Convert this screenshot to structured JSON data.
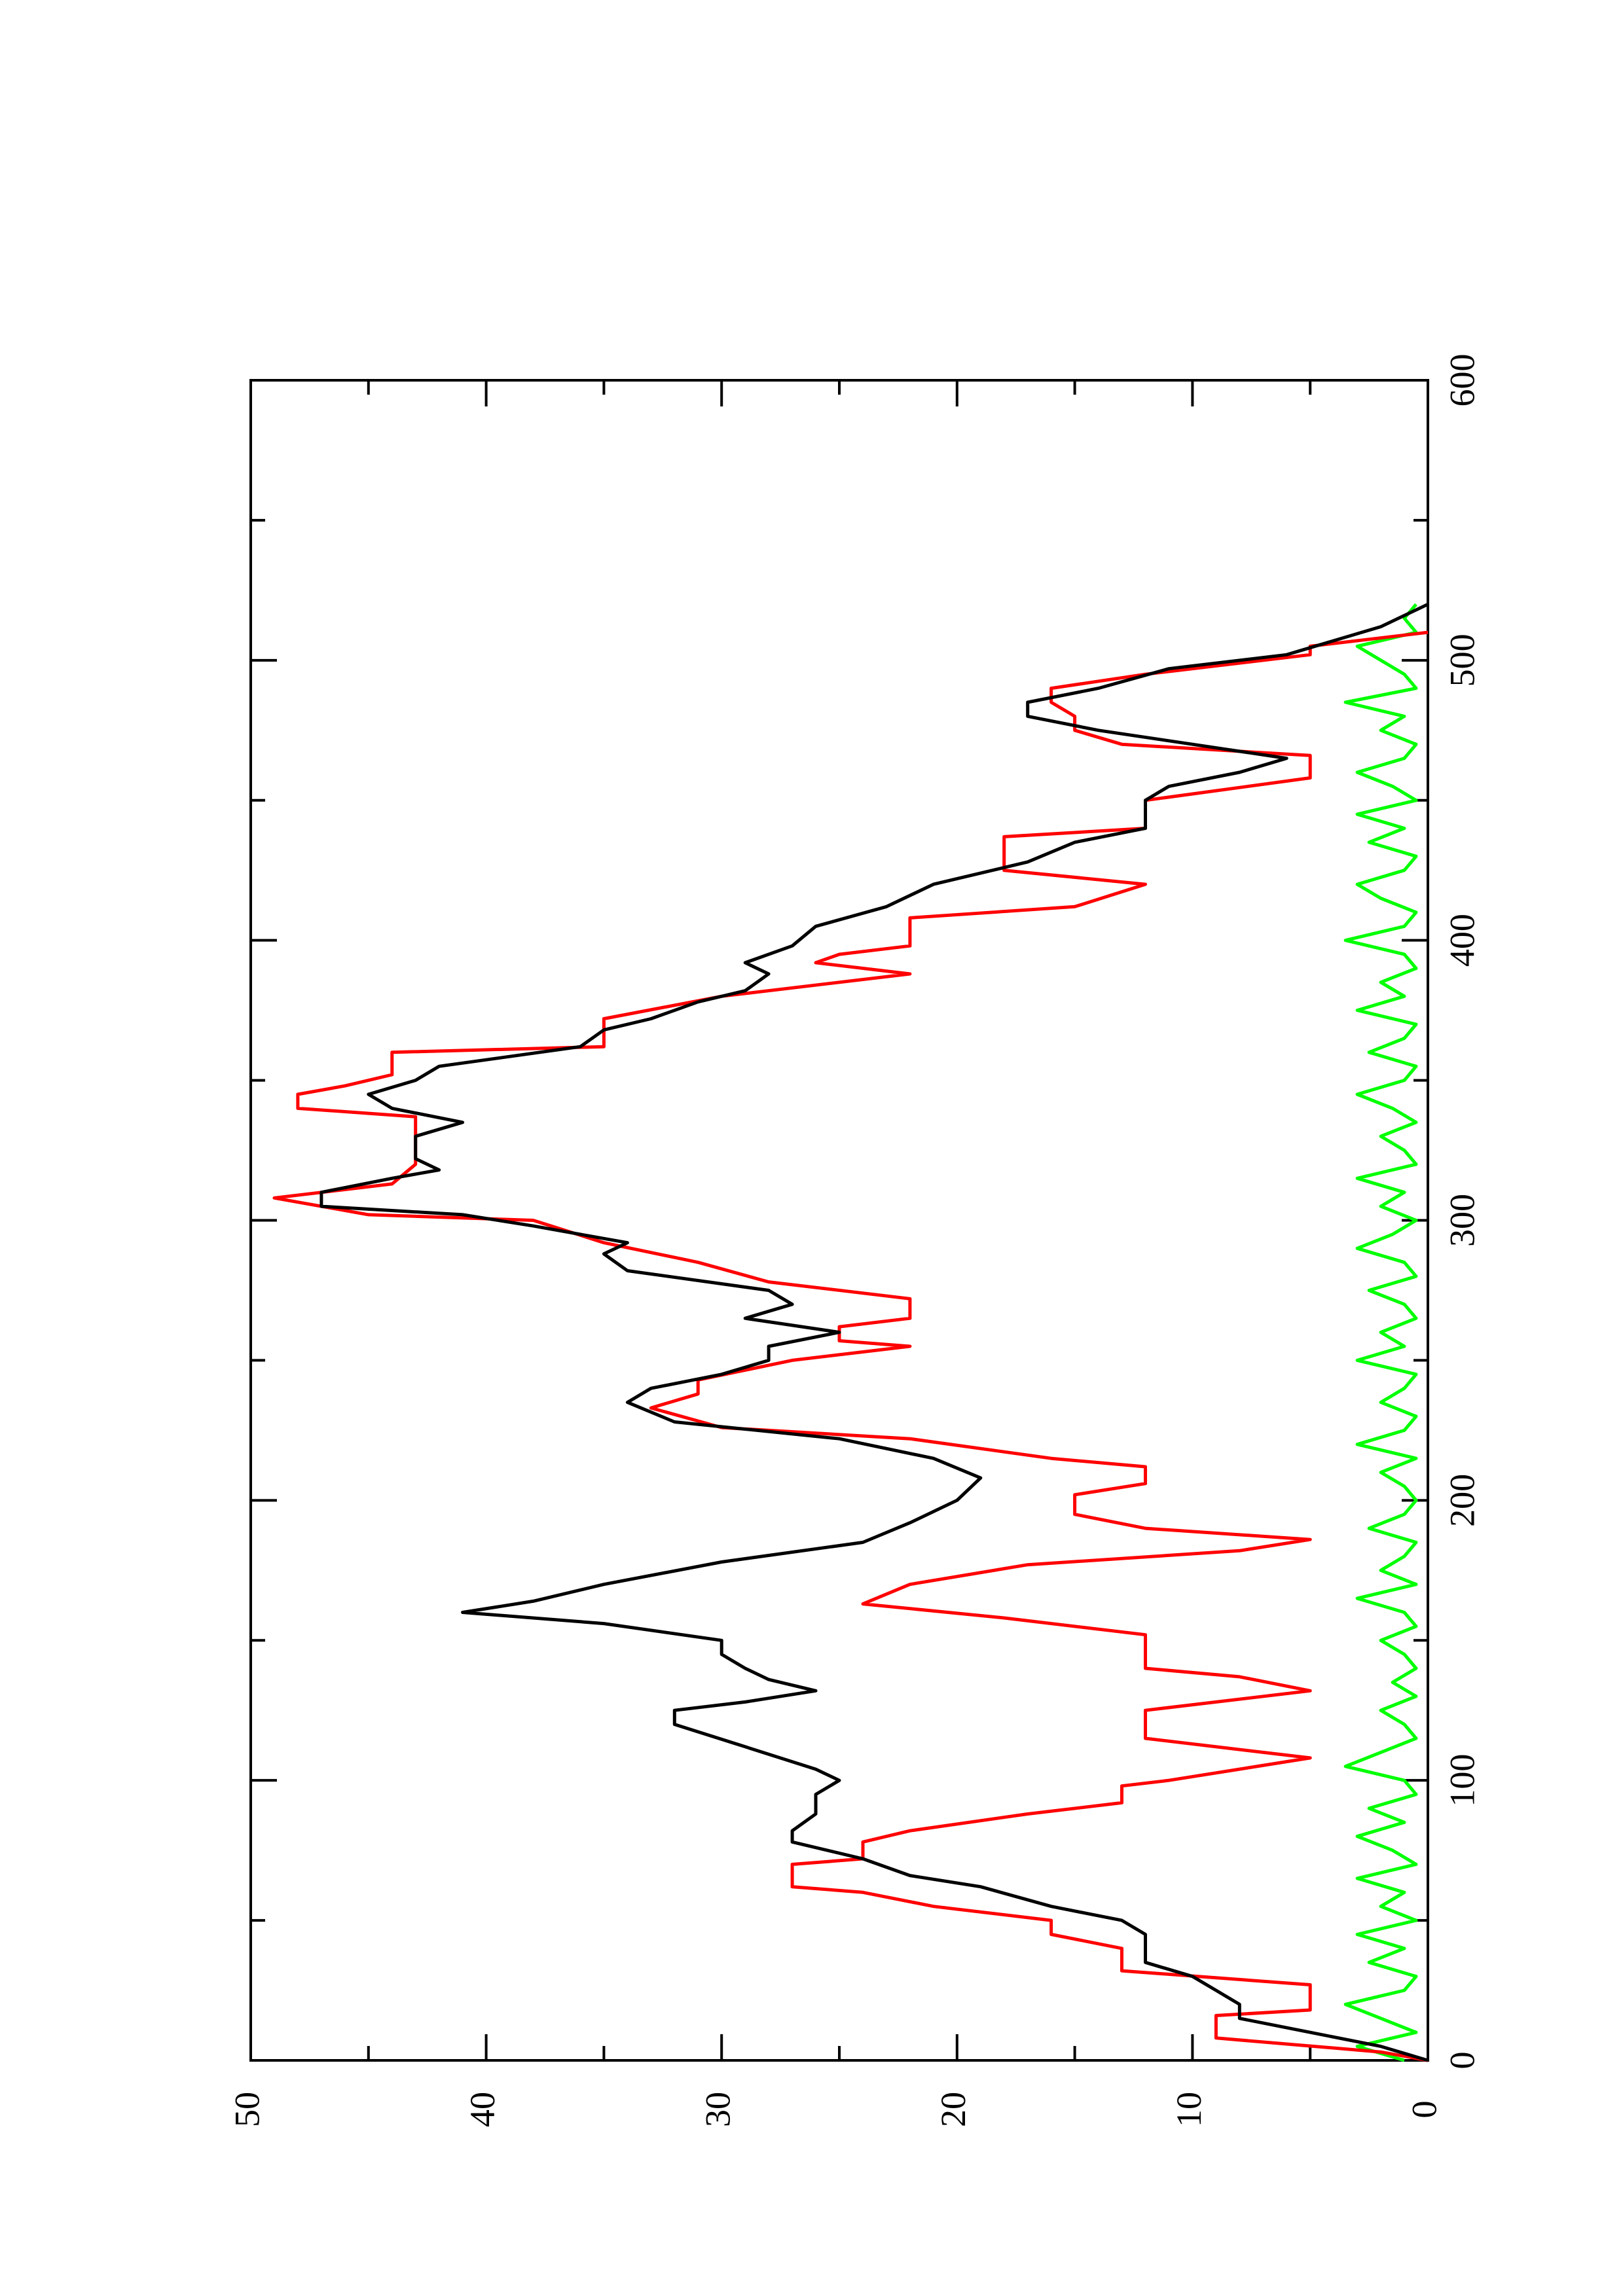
{
  "chart_data": {
    "type": "line",
    "xlim": [
      0,
      600
    ],
    "xticks": [
      0,
      100,
      200,
      300,
      400,
      500,
      600
    ],
    "ylim": [
      0,
      50
    ],
    "yticks": [
      0,
      10,
      20,
      30,
      40,
      50
    ],
    "rotated": true,
    "series": [
      {
        "color": "#00ff00",
        "x": [
          0,
          5,
          10,
          15,
          20,
          25,
          30,
          35,
          40,
          45,
          50,
          55,
          60,
          65,
          70,
          75,
          80,
          85,
          90,
          95,
          100,
          105,
          110,
          115,
          120,
          125,
          130,
          135,
          140,
          145,
          150,
          155,
          160,
          165,
          170,
          175,
          180,
          185,
          190,
          195,
          200,
          205,
          210,
          215,
          220,
          225,
          230,
          235,
          240,
          245,
          250,
          255,
          260,
          265,
          270,
          275,
          280,
          285,
          290,
          295,
          300,
          305,
          310,
          315,
          320,
          325,
          330,
          335,
          340,
          345,
          350,
          355,
          360,
          365,
          370,
          375,
          380,
          385,
          390,
          395,
          400,
          405,
          410,
          415,
          420,
          425,
          430,
          435,
          440,
          445,
          450,
          455,
          460,
          465,
          470,
          475,
          480,
          485,
          490,
          495,
          500,
          505,
          510,
          515,
          520
        ],
        "values": [
          1,
          3,
          0.5,
          2,
          3.5,
          1,
          0.5,
          2.5,
          1,
          3,
          0.5,
          2,
          1,
          3,
          0.5,
          1.5,
          3,
          1,
          2.5,
          0.5,
          1,
          3.5,
          2,
          0.5,
          1,
          2,
          0.5,
          1.5,
          0.5,
          1,
          2,
          0.5,
          1,
          3,
          0.5,
          2,
          1,
          0.5,
          2.5,
          1,
          0.5,
          1,
          2,
          0.5,
          3,
          1,
          0.5,
          2,
          1,
          0.5,
          3,
          1,
          2,
          0.5,
          1,
          2.5,
          0.5,
          1,
          3,
          1.5,
          0.5,
          2,
          1,
          3,
          0.5,
          1,
          2,
          0.5,
          1.5,
          3,
          1,
          0.5,
          2.5,
          1,
          0.5,
          3,
          1,
          2,
          0.5,
          1,
          3.5,
          1,
          0.5,
          2,
          3,
          1,
          0.5,
          2.5,
          1,
          3,
          0.5,
          1.5,
          3,
          1,
          0.5,
          2,
          1,
          3.5,
          0.5,
          1,
          2,
          3,
          0.5,
          1,
          0.5
        ]
      },
      {
        "color": "#ff0000",
        "x": [
          0,
          3,
          8,
          16,
          18,
          27,
          32,
          40,
          45,
          50,
          55,
          60,
          62,
          70,
          72,
          78,
          82,
          88,
          92,
          98,
          100,
          108,
          115,
          125,
          132,
          137,
          140,
          152,
          158,
          163,
          170,
          177,
          182,
          186,
          190,
          195,
          202,
          206,
          212,
          215,
          222,
          226,
          233,
          238,
          243,
          250,
          255,
          257,
          262,
          265,
          272,
          278,
          285,
          292,
          300,
          302,
          308,
          313,
          320,
          337,
          340,
          345,
          348,
          352,
          360,
          362,
          372,
          380,
          388,
          392,
          395,
          398,
          408,
          412,
          420,
          425,
          437,
          440,
          450,
          458,
          466,
          470,
          475,
          480,
          485,
          490,
          495,
          502,
          505,
          510
        ],
        "values": [
          0,
          2,
          9,
          9,
          5,
          5,
          13,
          13,
          16,
          16,
          21,
          24,
          27,
          27,
          24,
          24,
          22,
          17,
          13,
          13,
          11,
          5,
          12,
          12,
          5,
          8,
          12,
          12,
          18,
          24,
          22,
          17,
          8,
          5,
          12,
          15,
          15,
          12,
          12,
          16,
          22,
          30,
          33,
          31,
          31,
          27,
          22,
          25,
          25,
          22,
          22,
          28,
          31,
          35,
          38,
          45,
          49,
          44,
          43,
          43,
          48,
          48,
          46,
          44,
          44,
          35,
          35,
          30,
          22,
          26,
          25,
          22,
          22,
          15,
          12,
          18,
          18,
          12,
          12,
          5,
          5,
          13,
          15,
          15,
          16,
          16,
          12,
          5,
          5,
          0
        ]
      },
      {
        "color": "#000000",
        "x": [
          0,
          5,
          10,
          15,
          20,
          25,
          30,
          35,
          45,
          50,
          55,
          62,
          66,
          72,
          78,
          82,
          88,
          95,
          100,
          104,
          112,
          120,
          125,
          128,
          132,
          136,
          140,
          145,
          150,
          156,
          160,
          164,
          170,
          178,
          185,
          192,
          200,
          208,
          215,
          222,
          228,
          235,
          240,
          245,
          250,
          255,
          260,
          265,
          270,
          275,
          282,
          288,
          292,
          298,
          302,
          305,
          310,
          315,
          318,
          322,
          330,
          335,
          340,
          345,
          350,
          355,
          362,
          368,
          372,
          378,
          382,
          388,
          392,
          398,
          405,
          412,
          420,
          428,
          435,
          440,
          445,
          450,
          455,
          460,
          465,
          470,
          475,
          480,
          485,
          490,
          497,
          502,
          507,
          512,
          520
        ],
        "values": [
          0,
          2,
          5,
          8,
          8,
          9,
          10,
          12,
          12,
          13,
          16,
          19,
          22,
          24,
          27,
          27,
          26,
          26,
          25,
          26,
          29,
          32,
          32,
          29,
          26,
          28,
          29,
          30,
          30,
          35,
          41,
          38,
          35,
          30,
          24,
          22,
          20,
          19,
          21,
          25,
          32,
          34,
          33,
          30,
          28,
          28,
          25,
          29,
          27,
          28,
          34,
          35,
          34,
          38,
          41,
          47,
          47,
          44,
          42,
          43,
          43,
          41,
          44,
          45,
          43,
          42,
          36,
          35,
          33,
          31,
          29,
          28,
          29,
          27,
          26,
          23,
          21,
          17,
          15,
          12,
          12,
          12,
          11,
          8,
          6,
          10,
          14,
          17,
          17,
          14,
          11,
          6,
          4,
          2,
          0
        ]
      }
    ]
  }
}
